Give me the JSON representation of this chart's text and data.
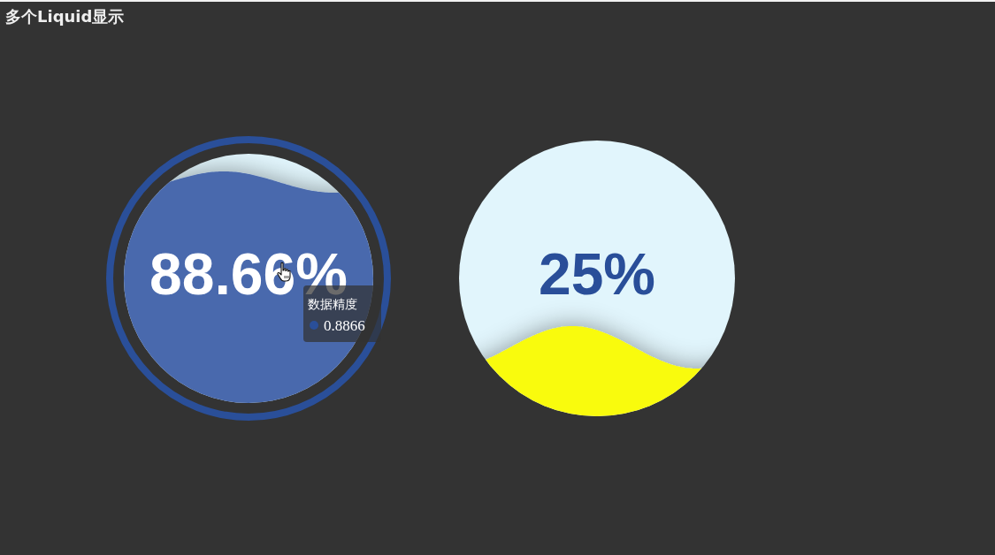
{
  "chart_data": {
    "type": "other",
    "title": "多个Liquid显示",
    "values": [
      88.66,
      25
    ],
    "value_labels": [
      "88.66%",
      "25%"
    ],
    "colors": [
      "#4a69ad",
      "#f9fb08"
    ],
    "annotations": [
      "数据精度",
      "0.8866"
    ]
  }
}
